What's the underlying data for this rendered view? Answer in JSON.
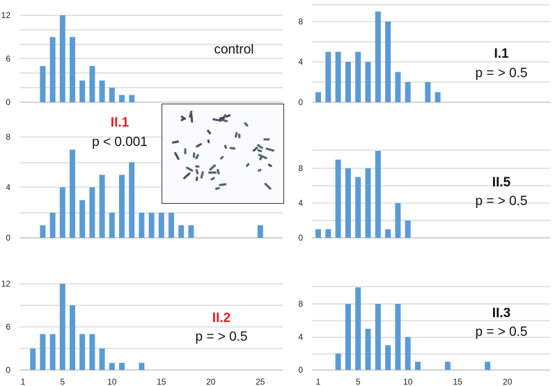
{
  "colors": {
    "bar": "#5B9BD5",
    "grid": "#C8C8C8",
    "text": "#222222",
    "highlight": "#E31E24"
  },
  "inset": {
    "label": "chromosome-spread-photo"
  },
  "chart_data": [
    {
      "id": "control",
      "type": "bar",
      "label": "control",
      "p_text": "",
      "label_color": "#111111",
      "x": [
        3,
        4,
        5,
        6,
        7,
        8,
        9,
        10,
        11,
        12
      ],
      "values": [
        5,
        9,
        12,
        9,
        3,
        5,
        3,
        2,
        1,
        1
      ],
      "ylim": [
        0,
        12
      ],
      "yticks": [
        0,
        6,
        12
      ],
      "xticks": []
    },
    {
      "id": "I.1",
      "type": "bar",
      "label": "I.1",
      "p_text": "p = > 0.5",
      "label_color": "#111111",
      "x": [
        1,
        2,
        3,
        4,
        5,
        6,
        7,
        8,
        9,
        10,
        12,
        13
      ],
      "values": [
        1,
        5,
        5,
        4,
        5,
        4,
        9,
        8,
        3,
        2,
        2,
        1
      ],
      "ylim": [
        0,
        9
      ],
      "yticks": [
        0,
        4,
        8
      ],
      "xticks": []
    },
    {
      "id": "II.1",
      "type": "bar",
      "label": "II.1",
      "p_text": "p < 0.001",
      "label_color": "#E31E24",
      "x": [
        3,
        4,
        5,
        6,
        7,
        8,
        9,
        10,
        11,
        12,
        13,
        14,
        15,
        16,
        17,
        18,
        25
      ],
      "values": [
        1,
        2,
        4,
        7,
        3,
        4,
        5,
        2,
        5,
        6,
        2,
        2,
        2,
        2,
        1,
        1,
        1
      ],
      "ylim": [
        0,
        9
      ],
      "yticks": [
        0,
        4,
        8
      ],
      "xticks": []
    },
    {
      "id": "II.5",
      "type": "bar",
      "label": "II.5",
      "p_text": "p = > 0.5",
      "label_color": "#111111",
      "x": [
        1,
        2,
        3,
        4,
        5,
        6,
        7,
        8,
        9,
        10
      ],
      "values": [
        1,
        1,
        9,
        8,
        7,
        8,
        10,
        1,
        4,
        2
      ],
      "ylim": [
        0,
        10
      ],
      "yticks": [
        0,
        4,
        8
      ],
      "xticks": []
    },
    {
      "id": "II.2",
      "type": "bar",
      "label": "II.2",
      "p_text": "p = > 0.5",
      "label_color": "#E31E24",
      "x": [
        2,
        3,
        4,
        5,
        6,
        7,
        8,
        9,
        10,
        11,
        13
      ],
      "values": [
        3,
        5,
        5,
        12,
        9,
        5,
        5,
        3,
        1,
        1,
        1
      ],
      "ylim": [
        0,
        12
      ],
      "yticks": [
        0,
        6,
        12
      ],
      "xticks": [
        1,
        5,
        10,
        15,
        20,
        25
      ]
    },
    {
      "id": "II.3",
      "type": "bar",
      "label": "II.3",
      "p_text": "p = > 0.5",
      "label_color": "#111111",
      "x": [
        3,
        4,
        5,
        6,
        7,
        8,
        9,
        10,
        11,
        14,
        18
      ],
      "values": [
        2,
        8,
        10,
        5,
        8,
        3,
        8,
        4,
        1,
        1,
        1
      ],
      "ylim": [
        0,
        10
      ],
      "yticks": [
        0,
        4,
        8
      ],
      "xticks": [
        1,
        5,
        10,
        15,
        20
      ]
    }
  ]
}
